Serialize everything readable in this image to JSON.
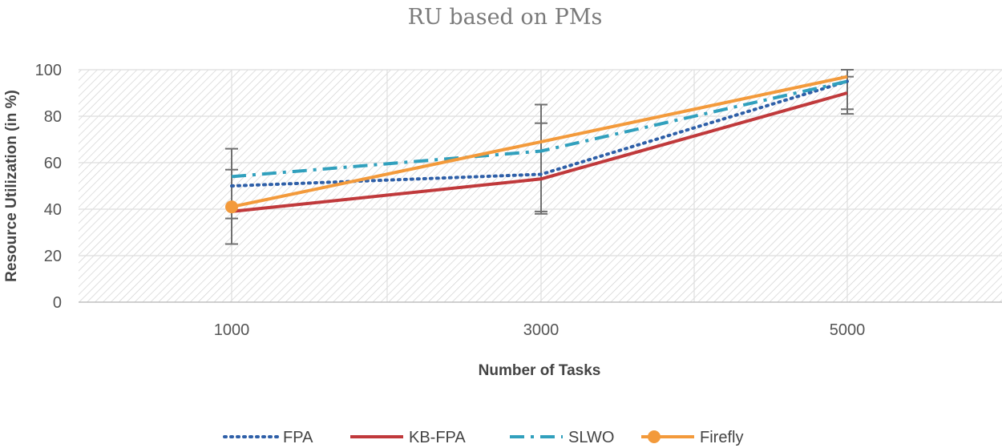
{
  "chart_data": {
    "type": "line",
    "title": "RU based on PMs",
    "xlabel": "Number of Tasks",
    "ylabel": "Resource Utilization (in %)",
    "categories": [
      "1000",
      "3000",
      "5000"
    ],
    "ylim": [
      0,
      100
    ],
    "yticks": [
      0,
      20,
      40,
      60,
      80,
      100
    ],
    "grid": true,
    "legend_position": "bottom",
    "series": [
      {
        "name": "FPA",
        "values": [
          50,
          55,
          95
        ],
        "color": "#2e5fa8",
        "style": "dotted"
      },
      {
        "name": "KB-FPA",
        "values": [
          39,
          53,
          90
        ],
        "color": "#c0393b",
        "style": "solid"
      },
      {
        "name": "SLWO",
        "values": [
          54,
          65,
          95
        ],
        "color": "#31a0bd",
        "style": "dashdot"
      },
      {
        "name": "Firefly",
        "values": [
          41,
          69,
          97
        ],
        "color": "#f39a3b",
        "style": "solid-marker",
        "error_bars": [
          [
            25,
            66
          ],
          [
            39,
            85
          ],
          [
            81,
            100
          ]
        ],
        "error_bars_inner": [
          [
            36,
            57
          ],
          [
            38,
            77
          ],
          [
            83,
            97
          ]
        ]
      }
    ]
  }
}
